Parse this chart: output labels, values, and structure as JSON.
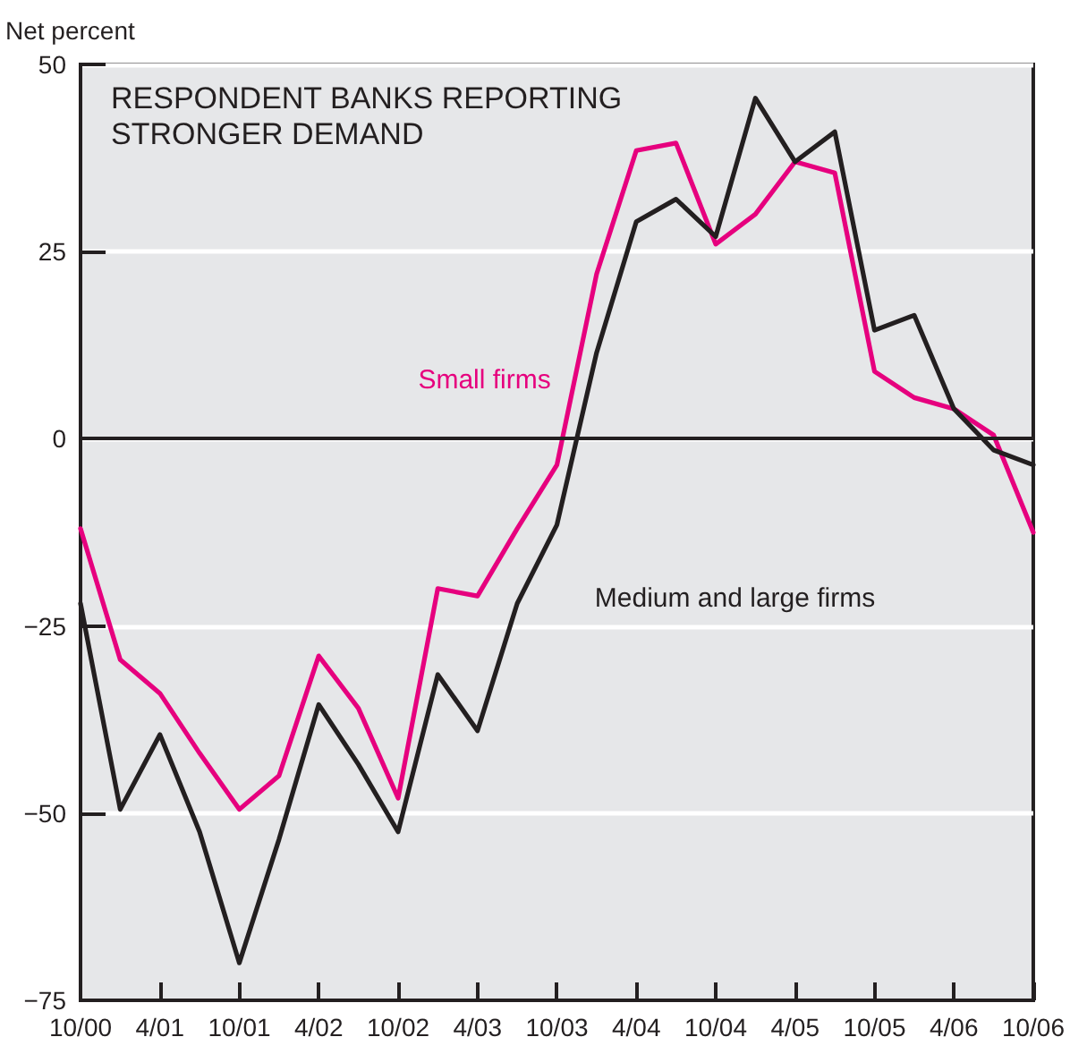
{
  "chart_data": {
    "type": "line",
    "title": "RESPONDENT BANKS REPORTING STRONGER DEMAND",
    "ylabel": "Net percent",
    "categories": [
      "10/00",
      null,
      "4/01",
      null,
      "10/01",
      null,
      "4/02",
      null,
      "10/02",
      null,
      "4/03",
      null,
      "10/03",
      null,
      "4/04",
      null,
      "10/04",
      null,
      "4/05",
      null,
      "10/05",
      null,
      "4/06",
      null,
      "10/06"
    ],
    "series": [
      {
        "name": "Small firms",
        "color": "#e6007e",
        "values": [
          -12,
          -29.5,
          -34,
          -42,
          -49.5,
          -45,
          -29,
          -36,
          -48,
          -20,
          -21,
          -12,
          -3.5,
          22,
          38.5,
          39.5,
          26,
          30,
          37,
          35.5,
          9,
          5.5,
          4,
          0.5,
          -12.5
        ]
      },
      {
        "name": "Medium and large firms",
        "color": "#231f20",
        "values": [
          -22,
          -49.5,
          -39.5,
          -52.5,
          -70,
          -53.5,
          -35.5,
          -43.5,
          -52.5,
          -31.5,
          -39,
          -22,
          -11.5,
          11.5,
          29,
          32,
          27,
          45.5,
          37,
          41,
          14.5,
          16.5,
          4,
          -1.5,
          -3.5
        ]
      }
    ],
    "ylim": [
      -75,
      50
    ],
    "yticks": [
      50,
      25,
      0,
      {
        "value": -25,
        "label": "−25"
      },
      {
        "value": -50,
        "label": "−50"
      },
      {
        "value": -75,
        "label": "−75"
      }
    ],
    "grid": "y",
    "legend": false,
    "marker": "none",
    "line_style": "solid",
    "ref_lines": [
      {
        "axis": "y",
        "value": 0,
        "label": null,
        "color": "#231f20"
      }
    ]
  }
}
